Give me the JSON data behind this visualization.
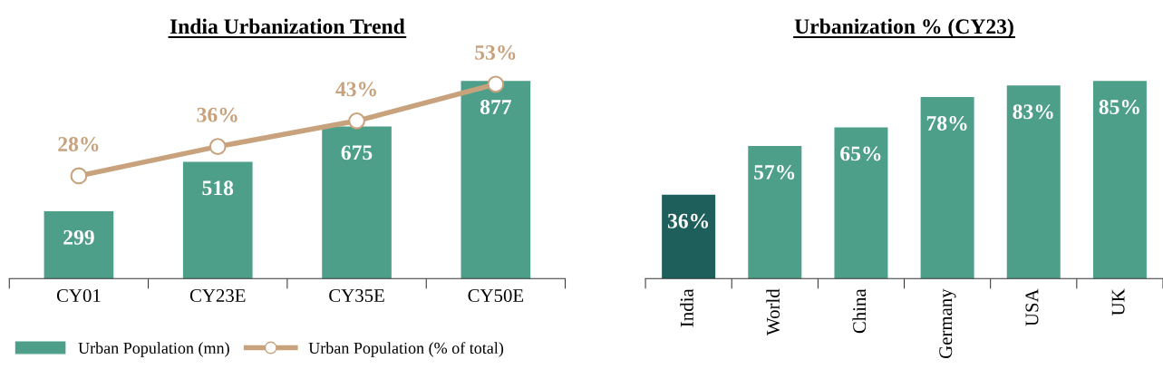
{
  "chart_data": [
    {
      "type": "bar",
      "title": "India Urbanization Trend",
      "categories": [
        "CY01",
        "CY23E",
        "CY35E",
        "CY50E"
      ],
      "series": [
        {
          "name": "Urban Population (mn)",
          "type": "bar",
          "color": "#4e9f8a",
          "values": [
            299,
            518,
            675,
            877
          ],
          "data_labels": true
        },
        {
          "name": "Urban Population (% of total)",
          "type": "line",
          "axis": "y2",
          "color": "#c8a27c",
          "marker": "circle",
          "values": [
            28,
            36,
            43,
            53
          ],
          "value_labels": [
            "28%",
            "36%",
            "43%",
            "53%"
          ]
        }
      ],
      "tick_labels": "x",
      "legend": "bottom",
      "grid": false
    },
    {
      "type": "bar",
      "title": "Urbanization % (CY23)",
      "categories": [
        "India",
        "World",
        "China",
        "Germany",
        "USA",
        "UK"
      ],
      "values": [
        36,
        57,
        65,
        78,
        83,
        85
      ],
      "colors": [
        "#1f5f5b",
        "#4e9f8a",
        "#4e9f8a",
        "#4e9f8a",
        "#4e9f8a",
        "#4e9f8a"
      ],
      "value_labels": [
        "36%",
        "57%",
        "65%",
        "78%",
        "83%",
        "85%"
      ],
      "tick_labels": "x",
      "grid": false
    }
  ]
}
